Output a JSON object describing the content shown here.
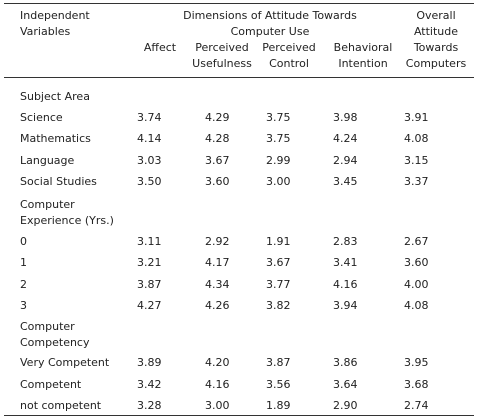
{
  "table": {
    "header": {
      "independent": "Independent Variables",
      "dimensions": "Dimensions of Attitude Towards Computer Use",
      "columns": [
        "Affect",
        "Perceived Usefulness",
        "Perceived Control",
        "Behavioral Intention",
        "Overall Attitude Towards Computers"
      ]
    },
    "rows": [
      {
        "label": "Subject Area"
      },
      {
        "label": "Science",
        "values": [
          "3.74",
          "4.29",
          "3.75",
          "3.98",
          "3.91"
        ]
      },
      {
        "label": "Mathematics",
        "values": [
          "4.14",
          "4.28",
          "3.75",
          "4.24",
          "4.08"
        ]
      },
      {
        "label": "Language",
        "values": [
          "3.03",
          "3.67",
          "2.99",
          "2.94",
          "3.15"
        ]
      },
      {
        "label": "Social Studies",
        "values": [
          "3.50",
          "3.60",
          "3.00",
          "3.45",
          "3.37"
        ]
      },
      {
        "label": "Computer Experience (Yrs.)"
      },
      {
        "label": "0",
        "values": [
          "3.11",
          "2.92",
          "1.91",
          "2.83",
          "2.67"
        ]
      },
      {
        "label": "1",
        "values": [
          "3.21",
          "4.17",
          "3.67",
          "3.41",
          "3.60"
        ]
      },
      {
        "label": "2",
        "values": [
          "3.87",
          "4.34",
          "3.77",
          "4.16",
          "4.00"
        ]
      },
      {
        "label": "3",
        "values": [
          "4.27",
          "4.26",
          "3.82",
          "3.94",
          "4.08"
        ]
      },
      {
        "label": "Computer Competency"
      },
      {
        "label": "Very Competent",
        "values": [
          "3.89",
          "4.20",
          "3.87",
          "3.86",
          "3.95"
        ]
      },
      {
        "label": "Competent",
        "values": [
          "3.42",
          "4.16",
          "3.56",
          "3.64",
          "3.68"
        ]
      },
      {
        "label": "not competent",
        "values": [
          "3.28",
          "3.00",
          "1.89",
          "2.90",
          "2.74"
        ]
      }
    ]
  }
}
